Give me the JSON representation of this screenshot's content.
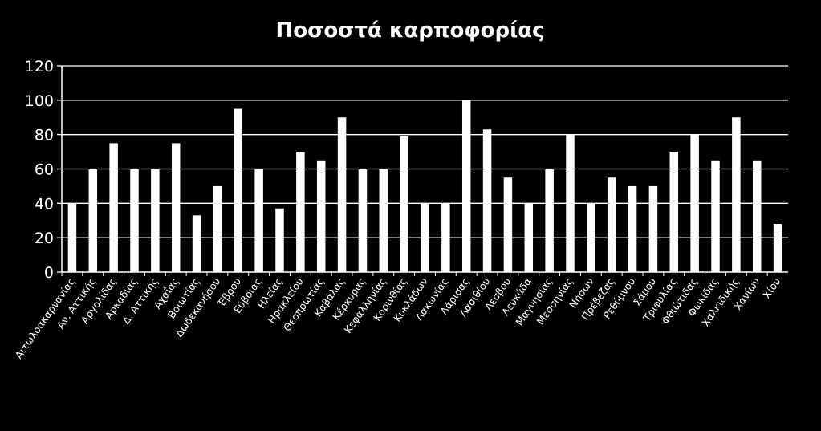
{
  "chart_data": {
    "type": "bar",
    "title": "Ποσοστά καρποφορίας",
    "xlabel": "",
    "ylabel": "",
    "ylim": [
      0,
      120
    ],
    "yticks": [
      "0",
      "20",
      "40",
      "60",
      "80",
      "100",
      "120"
    ],
    "grid": true,
    "legend": "none",
    "categories": [
      "Αιτωλοακαρνανίας",
      "Αν. Αττικής",
      "Αργολίδας",
      "Αρκαδίας",
      "Δ. Αττικής",
      "Αχαΐας",
      "Βοιωτίας",
      "Δωδεκανήσου",
      "Έβρου",
      "Εύβοιας",
      "Ηλείας",
      "Ηρακλείου",
      "Θεσπρωτίας",
      "Καβάλας",
      "Κέρκυρας",
      "Κεφαλληνίας",
      "Κορινθίας",
      "Κυκλάδων",
      "Λακωνίας",
      "Λάρισας",
      "Λασιθίου",
      "Λέσβου",
      "Λευκάδα",
      "Μαγνησίας",
      "Μεσσηνίας",
      "Νήσων",
      "Πρέβεζας",
      "Ρεθύμνου",
      "Σάμου",
      "Τριφυλίας",
      "Φθιώτιδας",
      "Φωκίδας",
      "Χαλκιδικής",
      "Χανίων",
      "Χίου"
    ],
    "values": [
      40,
      60,
      75,
      60,
      60,
      75,
      33,
      50,
      95,
      60,
      37,
      70,
      65,
      90,
      60,
      60,
      79,
      40,
      40,
      100,
      83,
      55,
      40,
      60,
      80,
      40,
      55,
      50,
      50,
      70,
      80,
      65,
      90,
      65,
      28
    ]
  },
  "colors": {
    "background": "#000000",
    "bar": "#ffffff",
    "text": "#ffffff",
    "grid": "#ffffff"
  }
}
